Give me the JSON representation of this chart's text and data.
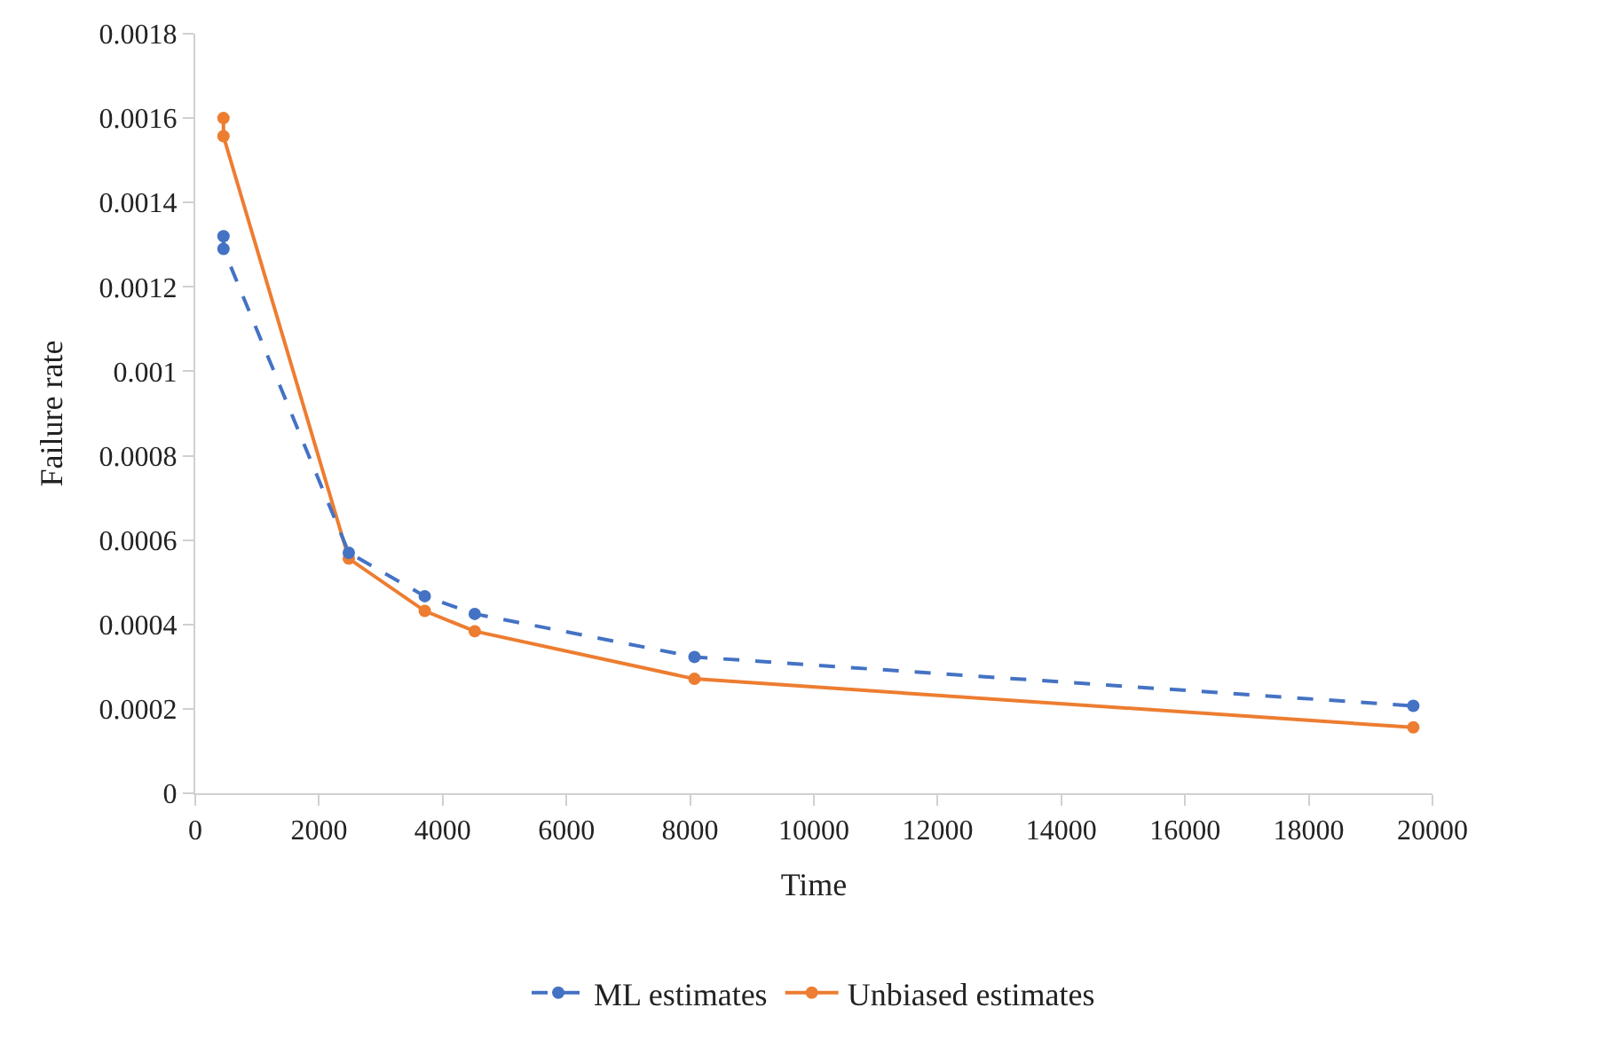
{
  "chart_data": {
    "type": "line",
    "xlabel": "Time",
    "ylabel": "Failure rate",
    "xlim": [
      0,
      20000
    ],
    "xticks": [
      0,
      2000,
      4000,
      6000,
      8000,
      10000,
      12000,
      14000,
      16000,
      18000,
      20000
    ],
    "ylim": [
      0,
      0.0018
    ],
    "yticks": [
      0,
      0.0002,
      0.0004,
      0.0006,
      0.0008,
      0.001,
      0.0012,
      0.0014,
      0.0016,
      0.0018
    ],
    "grid": false,
    "legend": "bottom",
    "marker": "circle",
    "series": [
      {
        "name": "ML estimates",
        "color": "#4472c4",
        "line_style": "dashed",
        "x": [
          456,
          456,
          2482,
          3710,
          4518,
          8070,
          19690
        ],
        "values": [
          0.00132,
          0.00129,
          0.00057,
          0.000467,
          0.000425,
          0.000323,
          0.000207
        ]
      },
      {
        "name": "Unbiased estimates",
        "color": "#ed7d31",
        "line_style": "solid",
        "x": [
          456,
          456,
          2482,
          3710,
          4518,
          8070,
          19690
        ],
        "values": [
          0.0016,
          0.001557,
          0.000556,
          0.000432,
          0.000384,
          0.000271,
          0.000156
        ]
      }
    ]
  }
}
